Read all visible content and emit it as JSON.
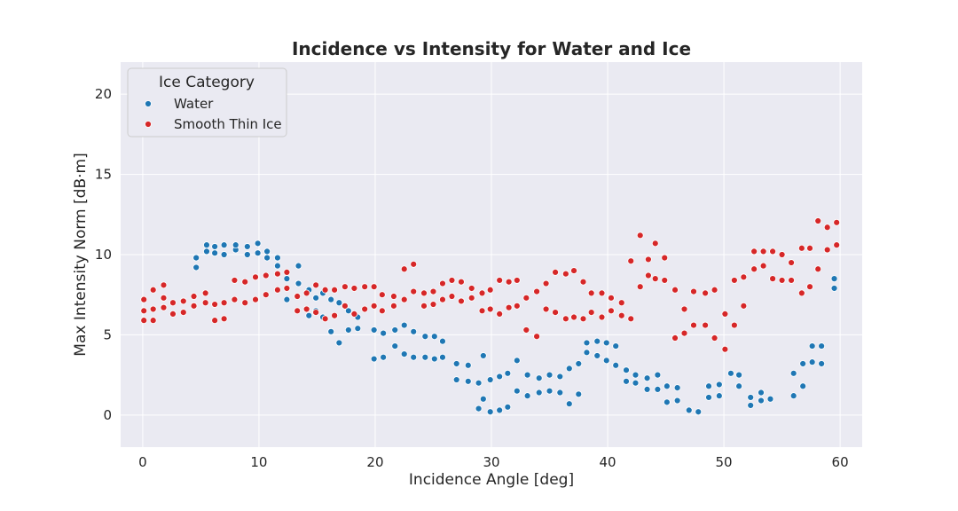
{
  "chart_data": {
    "type": "scatter",
    "title": "Incidence vs Intensity for Water and Ice",
    "xlabel": "Incidence Angle [deg]",
    "ylabel": "Max Intensity Norm [dB·m]",
    "xlim": [
      -1.9,
      61.9
    ],
    "ylim": [
      -2,
      22
    ],
    "xticks": [
      0,
      10,
      20,
      30,
      40,
      50,
      60
    ],
    "yticks": [
      0,
      5,
      10,
      15,
      20
    ],
    "grid": true,
    "legend": {
      "title": "Ice Category",
      "placement": "top-left"
    },
    "series": [
      {
        "name": "Water",
        "color": "#1f77b4",
        "points": [
          [
            4.6,
            9.2
          ],
          [
            4.6,
            9.8
          ],
          [
            5.5,
            10.2
          ],
          [
            5.5,
            10.6
          ],
          [
            6.2,
            10.1
          ],
          [
            6.2,
            10.5
          ],
          [
            7.0,
            10.0
          ],
          [
            7.0,
            10.6
          ],
          [
            8.0,
            10.3
          ],
          [
            8.0,
            10.6
          ],
          [
            9.0,
            10.0
          ],
          [
            9.0,
            10.5
          ],
          [
            9.9,
            10.1
          ],
          [
            9.9,
            10.7
          ],
          [
            10.7,
            9.8
          ],
          [
            10.7,
            10.2
          ],
          [
            11.6,
            9.3
          ],
          [
            11.6,
            9.8
          ],
          [
            12.4,
            8.5
          ],
          [
            12.4,
            7.2
          ],
          [
            13.4,
            9.3
          ],
          [
            13.4,
            8.2
          ],
          [
            14.3,
            7.8
          ],
          [
            14.3,
            6.2
          ],
          [
            14.9,
            7.3
          ],
          [
            14.9,
            6.5
          ],
          [
            15.5,
            7.6
          ],
          [
            15.5,
            6.1
          ],
          [
            16.2,
            7.2
          ],
          [
            16.2,
            5.2
          ],
          [
            16.9,
            7.0
          ],
          [
            16.9,
            4.5
          ],
          [
            17.7,
            6.5
          ],
          [
            17.7,
            5.3
          ],
          [
            18.5,
            6.1
          ],
          [
            18.5,
            5.4
          ],
          [
            19.9,
            5.3
          ],
          [
            19.9,
            3.5
          ],
          [
            20.7,
            5.1
          ],
          [
            20.7,
            3.6
          ],
          [
            21.7,
            5.3
          ],
          [
            21.7,
            4.3
          ],
          [
            22.5,
            5.6
          ],
          [
            22.5,
            3.8
          ],
          [
            23.3,
            5.2
          ],
          [
            23.3,
            3.6
          ],
          [
            24.3,
            4.9
          ],
          [
            24.3,
            3.6
          ],
          [
            25.1,
            4.9
          ],
          [
            25.1,
            3.5
          ],
          [
            25.8,
            4.6
          ],
          [
            25.8,
            3.6
          ],
          [
            27.0,
            3.2
          ],
          [
            27.0,
            2.2
          ],
          [
            28.0,
            3.1
          ],
          [
            28.0,
            2.1
          ],
          [
            28.9,
            2.0
          ],
          [
            28.9,
            0.4
          ],
          [
            29.3,
            3.7
          ],
          [
            29.3,
            1.0
          ],
          [
            29.9,
            2.2
          ],
          [
            29.9,
            0.2
          ],
          [
            30.7,
            2.4
          ],
          [
            30.7,
            0.3
          ],
          [
            31.4,
            2.6
          ],
          [
            31.4,
            0.5
          ],
          [
            32.2,
            1.5
          ],
          [
            32.2,
            3.4
          ],
          [
            33.1,
            2.5
          ],
          [
            33.1,
            1.2
          ],
          [
            34.1,
            2.3
          ],
          [
            34.1,
            1.4
          ],
          [
            35.0,
            2.5
          ],
          [
            35.0,
            1.5
          ],
          [
            35.9,
            2.4
          ],
          [
            35.9,
            1.4
          ],
          [
            36.7,
            2.9
          ],
          [
            36.7,
            0.7
          ],
          [
            37.5,
            3.2
          ],
          [
            37.5,
            1.3
          ],
          [
            38.2,
            4.5
          ],
          [
            38.2,
            3.9
          ],
          [
            39.1,
            4.6
          ],
          [
            39.1,
            3.7
          ],
          [
            39.9,
            4.5
          ],
          [
            39.9,
            3.4
          ],
          [
            40.7,
            4.3
          ],
          [
            40.7,
            3.1
          ],
          [
            41.6,
            2.8
          ],
          [
            41.6,
            2.1
          ],
          [
            42.4,
            2.5
          ],
          [
            42.4,
            2.0
          ],
          [
            43.4,
            2.3
          ],
          [
            43.4,
            1.6
          ],
          [
            44.3,
            2.5
          ],
          [
            44.3,
            1.6
          ],
          [
            45.1,
            1.8
          ],
          [
            45.1,
            0.8
          ],
          [
            46.0,
            1.7
          ],
          [
            46.0,
            0.9
          ],
          [
            47.0,
            0.3
          ],
          [
            47.8,
            0.2
          ],
          [
            48.7,
            1.8
          ],
          [
            48.7,
            1.1
          ],
          [
            49.6,
            1.9
          ],
          [
            49.6,
            1.2
          ],
          [
            50.6,
            2.6
          ],
          [
            51.3,
            2.5
          ],
          [
            51.3,
            1.8
          ],
          [
            52.3,
            1.1
          ],
          [
            52.3,
            0.6
          ],
          [
            53.2,
            1.4
          ],
          [
            53.2,
            0.9
          ],
          [
            54.0,
            1.0
          ],
          [
            56.0,
            2.6
          ],
          [
            56.0,
            1.2
          ],
          [
            56.8,
            3.2
          ],
          [
            56.8,
            1.8
          ],
          [
            57.6,
            4.3
          ],
          [
            57.6,
            3.3
          ],
          [
            58.4,
            4.3
          ],
          [
            58.4,
            3.2
          ],
          [
            59.5,
            8.5
          ],
          [
            59.5,
            7.9
          ]
        ]
      },
      {
        "name": "Smooth Thin Ice",
        "color": "#d62728",
        "points": [
          [
            0.1,
            7.2
          ],
          [
            0.1,
            6.5
          ],
          [
            0.1,
            5.9
          ],
          [
            0.9,
            7.8
          ],
          [
            0.9,
            6.6
          ],
          [
            0.9,
            5.9
          ],
          [
            1.8,
            8.1
          ],
          [
            1.8,
            7.3
          ],
          [
            1.8,
            6.7
          ],
          [
            2.6,
            7.0
          ],
          [
            2.6,
            6.3
          ],
          [
            3.5,
            7.1
          ],
          [
            3.5,
            6.4
          ],
          [
            4.4,
            7.4
          ],
          [
            4.4,
            6.8
          ],
          [
            5.4,
            7.6
          ],
          [
            5.4,
            7.0
          ],
          [
            6.2,
            6.9
          ],
          [
            6.2,
            5.9
          ],
          [
            7.0,
            7.0
          ],
          [
            7.0,
            6.0
          ],
          [
            7.9,
            8.4
          ],
          [
            7.9,
            7.2
          ],
          [
            8.8,
            8.3
          ],
          [
            8.8,
            7.0
          ],
          [
            9.7,
            8.6
          ],
          [
            9.7,
            7.2
          ],
          [
            10.6,
            8.7
          ],
          [
            10.6,
            7.5
          ],
          [
            11.6,
            8.8
          ],
          [
            11.6,
            7.8
          ],
          [
            12.4,
            8.9
          ],
          [
            12.4,
            7.9
          ],
          [
            13.3,
            7.4
          ],
          [
            13.3,
            6.5
          ],
          [
            14.1,
            7.6
          ],
          [
            14.1,
            6.6
          ],
          [
            14.9,
            8.1
          ],
          [
            14.9,
            6.4
          ],
          [
            15.7,
            7.8
          ],
          [
            15.7,
            6.0
          ],
          [
            16.5,
            7.8
          ],
          [
            16.5,
            6.2
          ],
          [
            17.4,
            8.0
          ],
          [
            17.4,
            6.8
          ],
          [
            18.2,
            7.9
          ],
          [
            18.2,
            6.3
          ],
          [
            19.1,
            8.0
          ],
          [
            19.1,
            6.6
          ],
          [
            19.9,
            8.0
          ],
          [
            19.9,
            6.8
          ],
          [
            20.6,
            7.5
          ],
          [
            20.6,
            6.5
          ],
          [
            21.6,
            7.4
          ],
          [
            21.6,
            6.8
          ],
          [
            22.5,
            9.1
          ],
          [
            22.5,
            7.2
          ],
          [
            23.3,
            9.4
          ],
          [
            23.3,
            7.7
          ],
          [
            24.2,
            7.6
          ],
          [
            24.2,
            6.8
          ],
          [
            25.0,
            7.7
          ],
          [
            25.0,
            6.9
          ],
          [
            25.8,
            8.2
          ],
          [
            25.8,
            7.2
          ],
          [
            26.6,
            8.4
          ],
          [
            26.6,
            7.4
          ],
          [
            27.4,
            8.3
          ],
          [
            27.4,
            7.1
          ],
          [
            28.3,
            7.9
          ],
          [
            28.3,
            7.3
          ],
          [
            29.2,
            7.6
          ],
          [
            29.2,
            6.5
          ],
          [
            29.9,
            7.8
          ],
          [
            29.9,
            6.6
          ],
          [
            30.7,
            8.4
          ],
          [
            30.7,
            6.3
          ],
          [
            31.5,
            8.3
          ],
          [
            31.5,
            6.7
          ],
          [
            32.2,
            8.4
          ],
          [
            32.2,
            6.8
          ],
          [
            33.0,
            7.3
          ],
          [
            33.0,
            5.3
          ],
          [
            33.9,
            7.7
          ],
          [
            33.9,
            4.9
          ],
          [
            34.7,
            8.2
          ],
          [
            34.7,
            6.6
          ],
          [
            35.5,
            8.9
          ],
          [
            35.5,
            6.4
          ],
          [
            36.4,
            8.8
          ],
          [
            36.4,
            6.0
          ],
          [
            37.1,
            9.0
          ],
          [
            37.1,
            6.1
          ],
          [
            37.9,
            8.3
          ],
          [
            37.9,
            6.0
          ],
          [
            38.6,
            7.6
          ],
          [
            38.6,
            6.4
          ],
          [
            39.5,
            7.6
          ],
          [
            39.5,
            6.1
          ],
          [
            40.3,
            7.3
          ],
          [
            40.3,
            6.5
          ],
          [
            41.2,
            7.0
          ],
          [
            41.2,
            6.2
          ],
          [
            42.0,
            9.6
          ],
          [
            42.0,
            6.0
          ],
          [
            42.8,
            11.2
          ],
          [
            42.8,
            8.0
          ],
          [
            43.5,
            9.7
          ],
          [
            43.5,
            8.7
          ],
          [
            44.1,
            10.7
          ],
          [
            44.1,
            8.5
          ],
          [
            44.9,
            9.8
          ],
          [
            44.9,
            8.4
          ],
          [
            45.8,
            7.8
          ],
          [
            45.8,
            4.8
          ],
          [
            46.6,
            6.6
          ],
          [
            46.6,
            5.1
          ],
          [
            47.4,
            7.7
          ],
          [
            47.4,
            5.6
          ],
          [
            48.4,
            7.6
          ],
          [
            48.4,
            5.6
          ],
          [
            49.2,
            7.8
          ],
          [
            49.2,
            4.8
          ],
          [
            50.1,
            6.3
          ],
          [
            50.1,
            4.1
          ],
          [
            50.9,
            8.4
          ],
          [
            50.9,
            5.6
          ],
          [
            51.7,
            8.6
          ],
          [
            51.7,
            6.8
          ],
          [
            52.6,
            10.2
          ],
          [
            52.6,
            9.1
          ],
          [
            53.4,
            10.2
          ],
          [
            53.4,
            9.3
          ],
          [
            54.2,
            10.2
          ],
          [
            54.2,
            8.5
          ],
          [
            55.0,
            10.0
          ],
          [
            55.0,
            8.4
          ],
          [
            55.8,
            9.5
          ],
          [
            55.8,
            8.4
          ],
          [
            56.7,
            10.4
          ],
          [
            56.7,
            7.6
          ],
          [
            57.4,
            10.4
          ],
          [
            57.4,
            8.0
          ],
          [
            58.1,
            12.1
          ],
          [
            58.1,
            9.1
          ],
          [
            58.9,
            11.7
          ],
          [
            58.9,
            10.3
          ],
          [
            59.7,
            12.0
          ],
          [
            59.7,
            10.6
          ]
        ]
      }
    ]
  }
}
